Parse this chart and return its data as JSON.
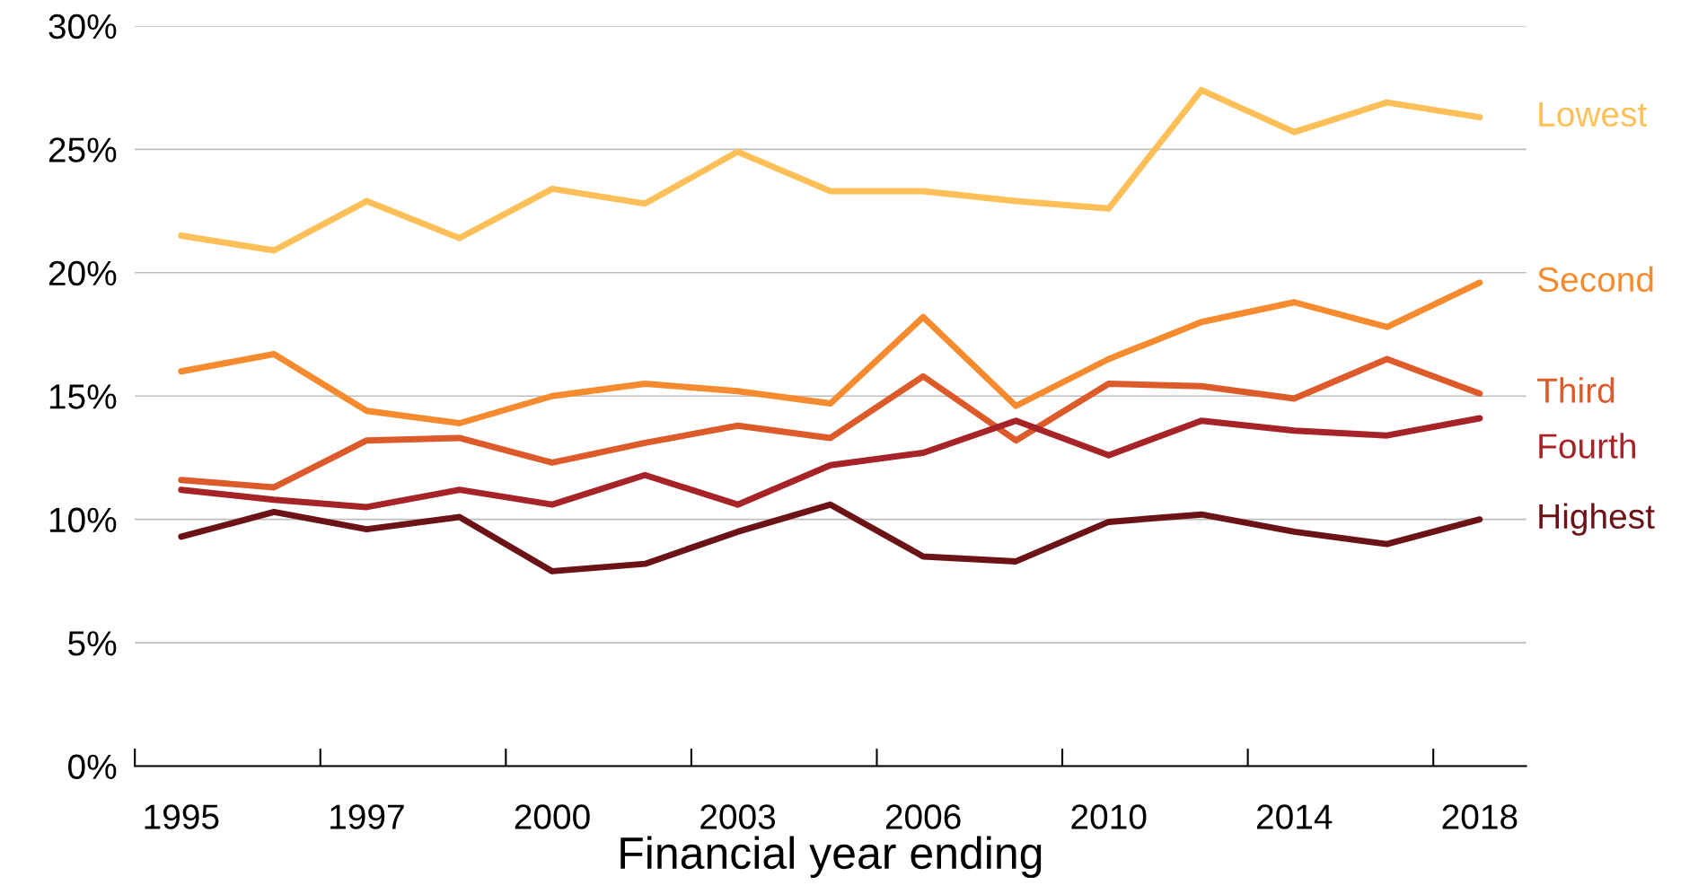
{
  "chart_data": {
    "type": "line",
    "xlabel": "Financial year ending",
    "categories": [
      "1995",
      null,
      "1997",
      null,
      "2000",
      null,
      "2003",
      null,
      "2006",
      null,
      "2010",
      null,
      "2014",
      null,
      "2018"
    ],
    "series": [
      {
        "name": "Lowest",
        "color": "#fdbf57",
        "values": [
          21.5,
          20.9,
          22.9,
          21.4,
          23.4,
          22.8,
          24.9,
          23.3,
          23.3,
          22.9,
          22.6,
          27.4,
          25.7,
          26.9,
          26.3
        ]
      },
      {
        "name": "Second",
        "color": "#f58b2e",
        "values": [
          16.0,
          16.7,
          14.4,
          13.9,
          15.0,
          15.5,
          15.2,
          14.7,
          18.2,
          14.6,
          16.5,
          18.0,
          18.8,
          17.8,
          19.6
        ]
      },
      {
        "name": "Third",
        "color": "#dd5a2a",
        "values": [
          11.6,
          11.3,
          13.2,
          13.3,
          12.3,
          13.1,
          13.8,
          13.3,
          15.8,
          13.2,
          15.5,
          15.4,
          14.9,
          16.5,
          15.1
        ]
      },
      {
        "name": "Fourth",
        "color": "#a62328",
        "values": [
          11.2,
          10.8,
          10.5,
          11.2,
          10.6,
          11.8,
          10.6,
          12.2,
          12.7,
          14.0,
          12.6,
          14.0,
          13.6,
          13.4,
          14.1
        ]
      },
      {
        "name": "Highest",
        "color": "#6b1316",
        "values": [
          9.3,
          10.3,
          9.6,
          10.1,
          7.9,
          8.2,
          9.5,
          10.6,
          8.5,
          8.3,
          9.9,
          10.2,
          9.5,
          9.0,
          10.0
        ]
      }
    ],
    "ylim": [
      0,
      30
    ],
    "yticks": [
      {
        "value": 0,
        "label": "0%"
      },
      {
        "value": 5,
        "label": "5%"
      },
      {
        "value": 10,
        "label": "10%"
      },
      {
        "value": 15,
        "label": "15%"
      },
      {
        "value": 20,
        "label": "20%"
      },
      {
        "value": 25,
        "label": "25%"
      },
      {
        "value": 30,
        "label": "30%"
      }
    ],
    "grid": "y",
    "legend": false,
    "marker": "none",
    "line_style": "solid"
  }
}
